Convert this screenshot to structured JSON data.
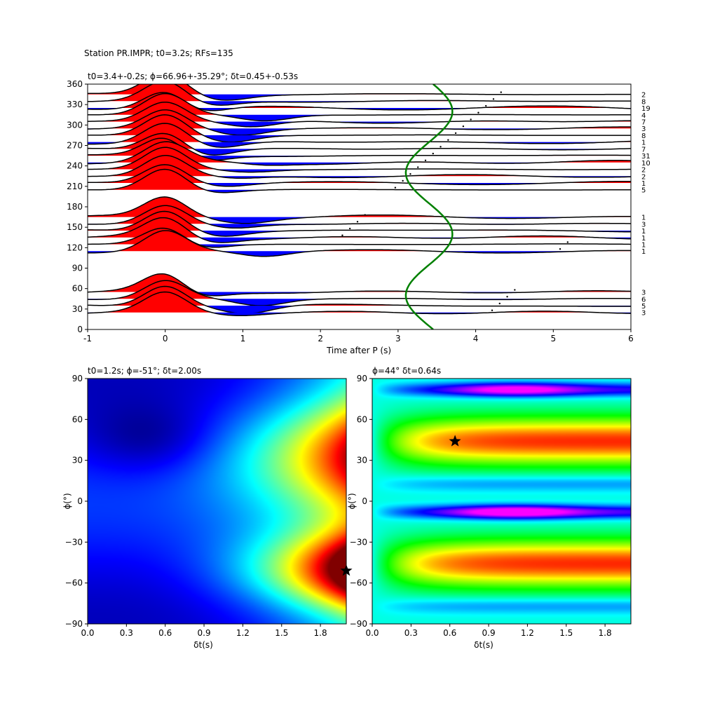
{
  "figure": {
    "suptitle": "Station PR.IMPR; t0=3.2s; RFs=135"
  },
  "chart_data": [
    {
      "type": "line",
      "name": "receiver-function-stack",
      "title": "t0=3.4+-0.2s; ϕ=66.96+-35.29°; δt=0.45+-0.53s",
      "xlabel": "Time after P (s)",
      "ylabel": "",
      "xlim": [
        -1,
        6
      ],
      "ylim": [
        0,
        360
      ],
      "xticks": [
        "-1",
        "0",
        "1",
        "2",
        "3",
        "4",
        "5",
        "6"
      ],
      "yticks": [
        "0",
        "30",
        "60",
        "90",
        "120",
        "150",
        "180",
        "210",
        "240",
        "270",
        "300",
        "330",
        "360"
      ],
      "positive_fill": "#ff0000",
      "negative_fill": "#0000ff",
      "curve_color": "#008000",
      "traces": [
        {
          "baz": 25,
          "count": "3"
        },
        {
          "baz": 35,
          "count": "5"
        },
        {
          "baz": 45,
          "count": "6"
        },
        {
          "baz": 55,
          "count": "3"
        },
        {
          "baz": 115,
          "count": "1"
        },
        {
          "baz": 125,
          "count": "1"
        },
        {
          "baz": 135,
          "count": "1"
        },
        {
          "baz": 145,
          "count": "1"
        },
        {
          "baz": 155,
          "count": "3"
        },
        {
          "baz": 165,
          "count": "1"
        },
        {
          "baz": 205,
          "count": "5"
        },
        {
          "baz": 215,
          "count": "1"
        },
        {
          "baz": 225,
          "count": "2"
        },
        {
          "baz": 235,
          "count": "2"
        },
        {
          "baz": 245,
          "count": "10"
        },
        {
          "baz": 255,
          "count": "31"
        },
        {
          "baz": 265,
          "count": "7"
        },
        {
          "baz": 275,
          "count": "1"
        },
        {
          "baz": 285,
          "count": "8"
        },
        {
          "baz": 295,
          "count": "3"
        },
        {
          "baz": 305,
          "count": "7"
        },
        {
          "baz": 315,
          "count": "4"
        },
        {
          "baz": 325,
          "count": "19"
        },
        {
          "baz": 335,
          "count": "8"
        },
        {
          "baz": 345,
          "count": "2"
        }
      ],
      "green_curve": {
        "t0": 3.4,
        "amplitude": 0.45
      }
    },
    {
      "type": "heatmap",
      "name": "grid-search-left",
      "title": "t0=1.2s; ϕ=-51°; δt=2.00s",
      "xlabel": "δt(s)",
      "ylabel": "ϕ(°)",
      "xlim": [
        0,
        2
      ],
      "ylim": [
        -90,
        90
      ],
      "xticks": [
        "0.0",
        "0.3",
        "0.6",
        "0.9",
        "1.2",
        "1.5",
        "1.8"
      ],
      "yticks": [
        "−90",
        "−60",
        "−30",
        "0",
        "30",
        "60",
        "90"
      ],
      "colormap": "jet",
      "star": {
        "x": 2.0,
        "y": -51
      }
    },
    {
      "type": "heatmap",
      "name": "grid-search-right",
      "title": "ϕ=44° δt=0.64s",
      "xlabel": "δt(s)",
      "ylabel": "ϕ(°)",
      "xlim": [
        0,
        2
      ],
      "ylim": [
        -90,
        90
      ],
      "xticks": [
        "0.0",
        "0.3",
        "0.6",
        "0.9",
        "1.2",
        "1.5",
        "1.8"
      ],
      "yticks": [
        "−90",
        "−60",
        "−30",
        "0",
        "30",
        "60",
        "90"
      ],
      "colormap": "gist_rainbow",
      "star": {
        "x": 0.64,
        "y": 44
      }
    }
  ]
}
